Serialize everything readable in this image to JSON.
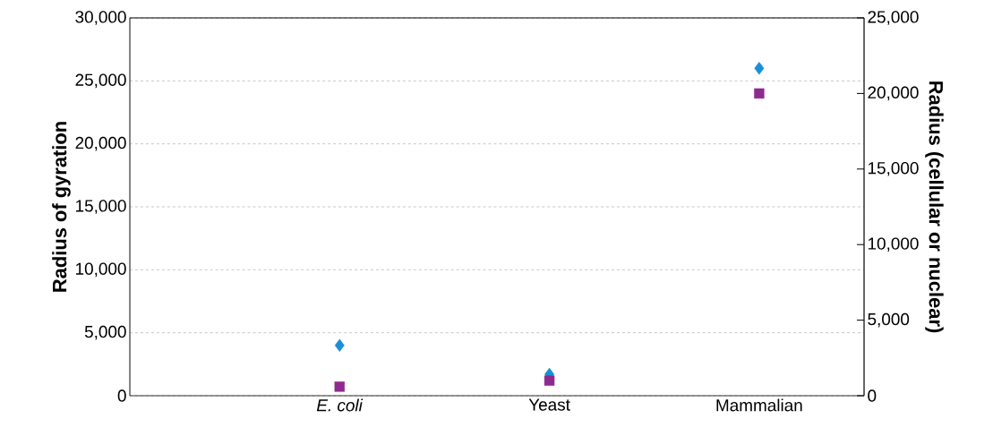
{
  "chart_data": {
    "type": "scatter",
    "ylabel": "Radius of gyration",
    "y2label": "Radius (cellular or nuclear)",
    "categories": [
      "*E. coli*",
      "Yeast",
      "Mammalian"
    ],
    "series": [
      {
        "color": "#1a8fd6",
        "marker": "diamond",
        "values": [
          4000,
          1700,
          26000
        ]
      },
      {
        "color": "#8e2a8e",
        "marker": "square",
        "axis": "y2",
        "values": [
          600,
          1000,
          20000
        ]
      }
    ],
    "ylim": [
      0,
      30000
    ],
    "yticks": [
      {
        "value": 0,
        "label": "0"
      },
      {
        "value": 5000,
        "label": "5,000"
      },
      {
        "value": 10000,
        "label": "10,000"
      },
      {
        "value": 15000,
        "label": "15,000"
      },
      {
        "value": 20000,
        "label": "20,000"
      },
      {
        "value": 25000,
        "label": "25,000"
      },
      {
        "value": 30000,
        "label": "30,000"
      }
    ],
    "y2lim": [
      0,
      25000
    ],
    "y2ticks": [
      {
        "value": 0,
        "label": "0"
      },
      {
        "value": 5000,
        "label": "5,000"
      },
      {
        "value": 10000,
        "label": "10,000"
      },
      {
        "value": 15000,
        "label": "15,000"
      },
      {
        "value": 20000,
        "label": "20,000"
      },
      {
        "value": 25000,
        "label": "25,000"
      }
    ],
    "grid": "y"
  }
}
